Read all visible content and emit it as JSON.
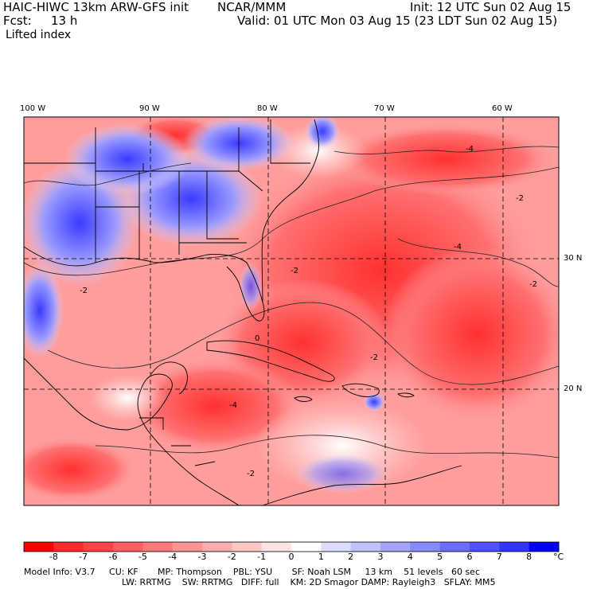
{
  "header": {
    "model_title": "HAIC-HIWC 13km ARW-GFS init",
    "org": "NCAR/MMM",
    "init": "Init: 12 UTC Sun 02 Aug 15",
    "fcst_label": "Fcst:",
    "fcst_value": "13 h",
    "valid": "Valid: 01 UTC Mon 03 Aug 15 (23 LDT Sun 02 Aug 15)",
    "field": "Lifted index"
  },
  "map": {
    "lon_labels": [
      "100 W",
      "90 W",
      "80 W",
      "70 W",
      "60 W"
    ],
    "lat_labels": [
      "30 N",
      "20 N"
    ],
    "contour_labels": [
      "-4",
      "-2",
      "-2",
      "-4",
      "-2",
      "-2",
      "0",
      "-2",
      "-4",
      "-2"
    ]
  },
  "colorbar": {
    "ticks": [
      "-8",
      "-7",
      "-6",
      "-5",
      "-4",
      "-3",
      "-2",
      "-1",
      "0",
      "1",
      "2",
      "3",
      "4",
      "5",
      "6",
      "7",
      "8"
    ],
    "unit": "°C",
    "colors": [
      "#ff0000",
      "#ff2a2a",
      "#ff4444",
      "#ff5e5e",
      "#ff7878",
      "#ff9292",
      "#ffacac",
      "#ffc6c6",
      "#ffe2e2",
      "#ffffff",
      "#dcdcff",
      "#c0c0ff",
      "#a4a4ff",
      "#8888ff",
      "#6c6cff",
      "#5050ff",
      "#3434ff",
      "#0000ff"
    ]
  },
  "model_info": {
    "line1": "Model Info: V3.7     CU: KF       MP: Thompson    PBL: YSU       SF: Noah LSM     13 km    51 levels   60 sec",
    "line2": "LW: RRTMG    SW: RRTMG   DIFF: full    KM: 2D Smagor DAMP: Rayleigh3   SFLAY: MM5"
  }
}
